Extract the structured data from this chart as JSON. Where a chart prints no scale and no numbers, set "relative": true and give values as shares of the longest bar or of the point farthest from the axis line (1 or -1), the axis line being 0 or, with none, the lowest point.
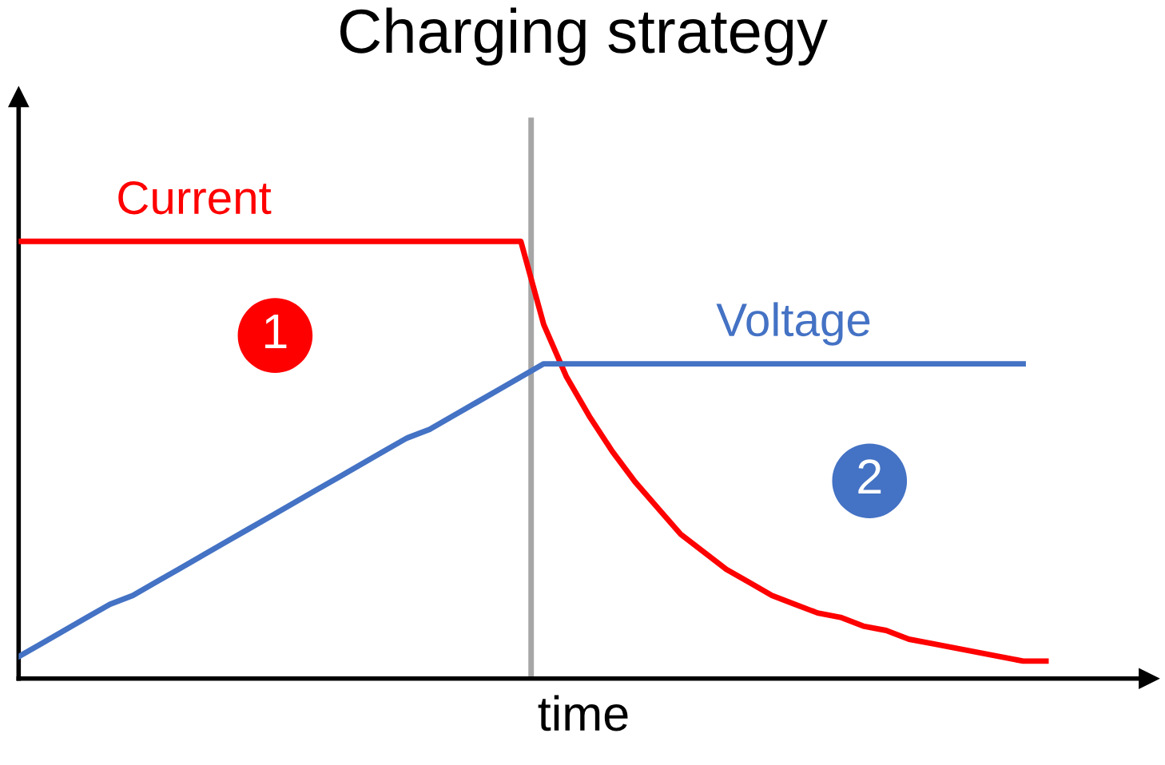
{
  "chart_data": {
    "type": "line",
    "title": "Charging strategy",
    "xlabel": "time",
    "relative": true,
    "legend": false,
    "marker": "none",
    "line_style": "solid",
    "categories": [
      null,
      null,
      null,
      null,
      null,
      null,
      null,
      null,
      null,
      null,
      null,
      null,
      null,
      null,
      null,
      null,
      null,
      null,
      null,
      null,
      null,
      null,
      null,
      null,
      null,
      null,
      null,
      null,
      null,
      null,
      null,
      null,
      null,
      null,
      null,
      null,
      null,
      null,
      null,
      null,
      null,
      null,
      null,
      null,
      null,
      null
    ],
    "series": [
      {
        "name": "Current",
        "color": "#ff0000",
        "values": [
          1,
          1,
          1,
          1,
          1,
          1,
          1,
          1,
          1,
          1,
          1,
          1,
          1,
          1,
          1,
          1,
          1,
          1,
          1,
          1,
          1,
          1,
          1,
          0.81,
          0.69,
          0.6,
          0.52,
          0.45,
          0.39,
          0.33,
          0.29,
          0.25,
          0.22,
          0.19,
          0.17,
          0.15,
          0.14,
          0.12,
          0.11,
          0.09,
          0.08,
          0.07,
          0.06,
          0.05,
          0.04,
          0.04
        ]
      },
      {
        "name": "Voltage",
        "color": "#4472c4",
        "values": [
          0.05,
          0.08,
          0.11,
          0.14,
          0.17,
          0.19,
          0.22,
          0.25,
          0.28,
          0.31,
          0.34,
          0.37,
          0.4,
          0.43,
          0.46,
          0.49,
          0.52,
          0.55,
          0.57,
          0.6,
          0.63,
          0.66,
          0.69,
          0.72,
          0.72,
          0.72,
          0.72,
          0.72,
          0.72,
          0.72,
          0.72,
          0.72,
          0.72,
          0.72,
          0.72,
          0.72,
          0.72,
          0.72,
          0.72,
          0.72,
          0.72,
          0.72,
          0.72,
          0.72,
          0.72,
          null
        ]
      }
    ],
    "annotations": [
      "1",
      "2"
    ]
  }
}
